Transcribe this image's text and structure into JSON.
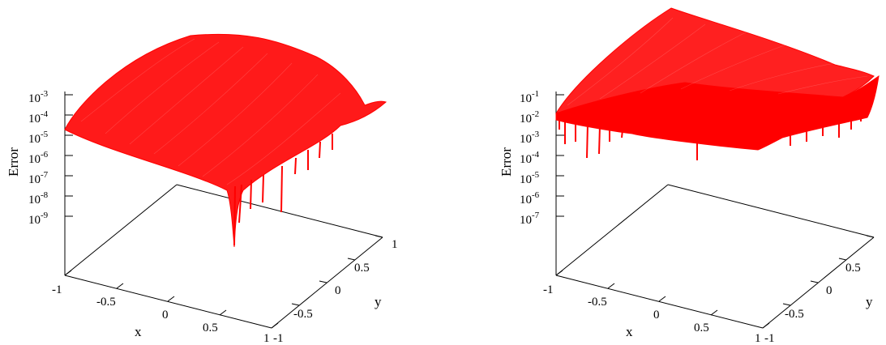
{
  "chart_data": [
    {
      "type": "surface",
      "zlabel": "Error",
      "xlabel": "x",
      "ylabel": "y",
      "zscale": "log",
      "z_ticks": [
        "10-3",
        "10-4",
        "10-5",
        "10-6",
        "10-7",
        "10-8",
        "10-9"
      ],
      "x_ticks": [
        "-1",
        "-0.5",
        "0",
        "0.5",
        "1"
      ],
      "y_ticks": [
        "-1",
        "-0.5",
        "0",
        "0.5",
        "1"
      ],
      "color": "#ff0000",
      "z_range_exponent": [
        -9.5,
        -3
      ],
      "description_values": {
        "peak_error_exponent": -3.2,
        "edge_error_exponent": -5,
        "min_spike_exponent": -10
      }
    },
    {
      "type": "surface",
      "zlabel": "Error",
      "xlabel": "x",
      "ylabel": "y",
      "zscale": "log",
      "z_ticks": [
        "10-1",
        "10-2",
        "10-3",
        "10-4",
        "10-5",
        "10-6",
        "10-7"
      ],
      "x_ticks": [
        "-1",
        "-0.5",
        "0",
        "0.5",
        "1"
      ],
      "y_ticks": [
        "-1",
        "-0.5",
        "0",
        "0.5",
        "1"
      ],
      "color": "#ff0000",
      "z_range_exponent": [
        -7.5,
        -1
      ],
      "description_values": {
        "peak_error_exponent": -0.8,
        "edge_error_exponent": -2.5,
        "min_spike_exponent": -4.5
      }
    }
  ]
}
